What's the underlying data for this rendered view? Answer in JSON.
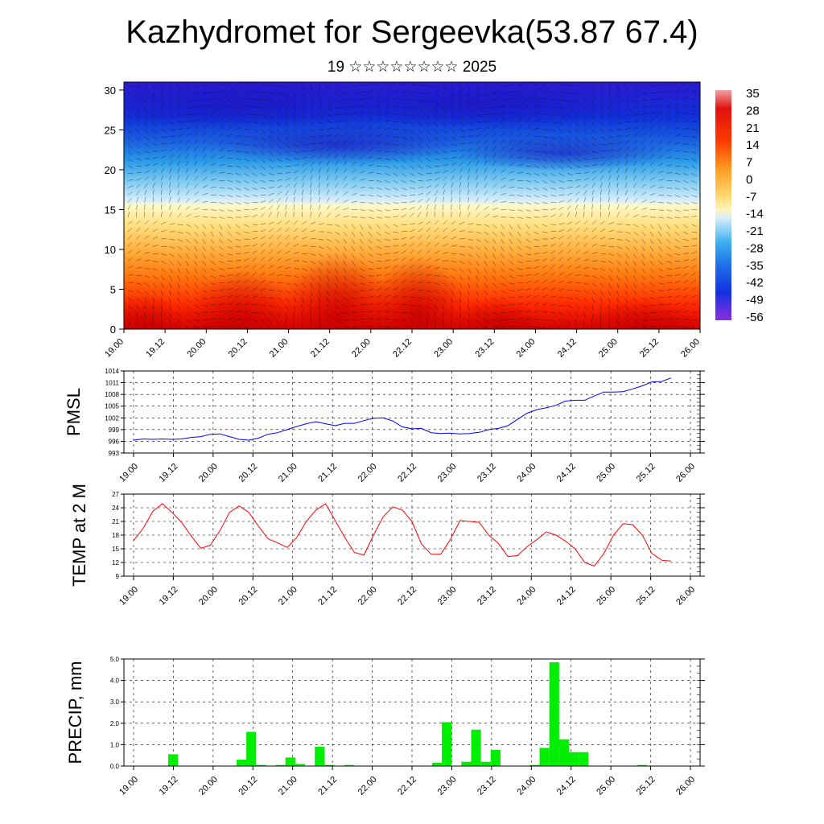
{
  "title": "Kazhydromet for Sergeevka(53.87 67.4)",
  "subtitle": "19 ☆☆☆☆☆☆☆☆ 2025",
  "colors": {
    "pmsl_line": "#0000ff",
    "temp_line": "#ff0000",
    "precip_bar": "#00ee00"
  },
  "chart_data": [
    {
      "type": "heatmap",
      "title": "Kazhydromet for Sergeevka(53.87 67.4)",
      "subtitle": "19 ☆☆☆☆☆☆☆☆ 2025",
      "x_ticks": [
        "19.00",
        "19.12",
        "20.00",
        "20.12",
        "21.00",
        "21.12",
        "22.00",
        "22.12",
        "23.00",
        "23.12",
        "24.00",
        "24.12",
        "25.00",
        "25.12",
        "26.00"
      ],
      "y_ticks": [
        0,
        5,
        10,
        15,
        20,
        25,
        30
      ],
      "ylim": [
        0,
        31
      ],
      "colorbar_labels": [
        "35",
        "28",
        "21",
        "14",
        "7",
        "0",
        "-7",
        "-14",
        "-21",
        "-28",
        "-35",
        "-42",
        "-49",
        "-56"
      ],
      "overlay": "wind vectors"
    },
    {
      "type": "line",
      "ylabel": "PMSL",
      "x_ticks": [
        "19.00",
        "19.12",
        "20.00",
        "20.12",
        "21.00",
        "21.12",
        "22.00",
        "22.12",
        "23.00",
        "23.12",
        "24.00",
        "24.12",
        "25.00",
        "25.12",
        "26.00"
      ],
      "y_ticks": [
        993,
        996,
        999,
        1002,
        1005,
        1008,
        1011,
        1014
      ],
      "ylim": [
        993,
        1014
      ],
      "grid": true,
      "values": [
        996.3,
        996.6,
        996.5,
        996.6,
        996.5,
        996.6,
        997.0,
        997.2,
        997.8,
        997.9,
        997.2,
        996.5,
        996.3,
        996.8,
        997.8,
        998.2,
        999.0,
        999.8,
        1000.5,
        1001.0,
        1000.5,
        1000.0,
        1000.6,
        1000.6,
        1001.3,
        1001.9,
        1002.0,
        1001.2,
        999.7,
        999.2,
        999.3,
        998.2,
        998.0,
        998.1,
        997.9,
        998.0,
        998.3,
        999.0,
        999.3,
        1000.0,
        1001.6,
        1003.2,
        1004.1,
        1004.6,
        1005.2,
        1006.3,
        1006.5,
        1006.5,
        1007.6,
        1008.6,
        1008.6,
        1008.7,
        1009.4,
        1010.2,
        1011.2,
        1011.3,
        1012.2
      ]
    },
    {
      "type": "line",
      "ylabel": "TEMP at 2 M",
      "x_ticks": [
        "19.00",
        "19.12",
        "20.00",
        "20.12",
        "21.00",
        "21.12",
        "22.00",
        "22.12",
        "23.00",
        "23.12",
        "24.00",
        "24.12",
        "25.00",
        "25.12",
        "26.00"
      ],
      "y_ticks": [
        9,
        12,
        15,
        18,
        21,
        24,
        27
      ],
      "ylim": [
        9,
        27
      ],
      "grid": true,
      "values": [
        16.8,
        19.5,
        23.2,
        24.9,
        23.0,
        20.8,
        17.8,
        15.1,
        15.8,
        19.0,
        23.0,
        24.4,
        23.0,
        20.0,
        17.2,
        16.3,
        15.3,
        17.5,
        21.0,
        23.5,
        24.9,
        21.2,
        17.5,
        14.2,
        13.6,
        18.0,
        22.0,
        24.2,
        23.5,
        21.0,
        16.0,
        13.8,
        13.8,
        17.0,
        21.2,
        21.0,
        20.8,
        18.0,
        16.2,
        13.3,
        13.5,
        15.5,
        17.0,
        18.7,
        18.0,
        16.7,
        15.0,
        12.0,
        11.2,
        14.0,
        18.0,
        20.5,
        20.3,
        18.0,
        14.0,
        12.5,
        12.3
      ]
    },
    {
      "type": "bar",
      "ylabel": "PRECIP, mm",
      "x_ticks": [
        "19.00",
        "19.12",
        "20.00",
        "20.12",
        "21.00",
        "21.12",
        "22.00",
        "22.12",
        "23.00",
        "23.12",
        "24.00",
        "24.12",
        "25.00",
        "25.12",
        "26.00"
      ],
      "y_ticks": [
        "0.0",
        "1.0",
        "2.0",
        "3.0",
        "4.0",
        "5.0"
      ],
      "ylim": [
        0,
        5
      ],
      "grid": true,
      "values": [
        0,
        0,
        0,
        0,
        0.55,
        0,
        0,
        0,
        0,
        0,
        0,
        0.3,
        1.6,
        0.05,
        0,
        0.05,
        0.4,
        0.1,
        0,
        0.9,
        0.05,
        0,
        0.05,
        0,
        0,
        0,
        0,
        0,
        0,
        0,
        0,
        0.15,
        2.05,
        0,
        0.2,
        1.7,
        0.2,
        0.75,
        0,
        0,
        0,
        0.05,
        0.85,
        4.85,
        1.25,
        0.65,
        0.65,
        0,
        0,
        0,
        0,
        0,
        0.05,
        0,
        0,
        0
      ]
    }
  ]
}
